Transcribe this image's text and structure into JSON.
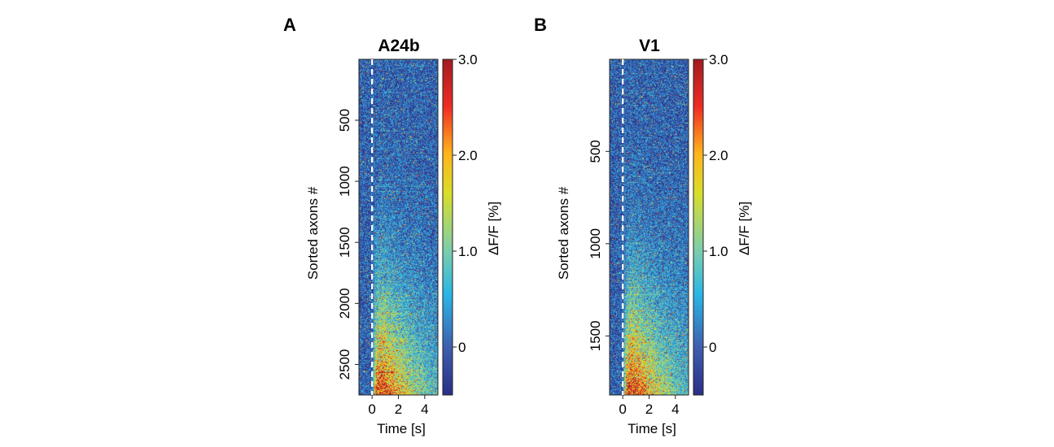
{
  "chart_data": [
    {
      "type": "heatmap",
      "panel_label": "A",
      "title": "A24b",
      "xlabel": "Time [s]",
      "ylabel": "Sorted axons #",
      "x_ticks": [
        0,
        2,
        4
      ],
      "xlim": [
        -1.0,
        5.0
      ],
      "y_ticks": [
        500,
        1000,
        1500,
        2000,
        2500
      ],
      "ylim": [
        2750,
        1
      ],
      "y_inverted": true,
      "n_rows": 2750,
      "stimulus_onset": 0,
      "colorbar": {
        "label": "ΔF/F [%]",
        "colormap": "jet",
        "range": [
          -0.5,
          3.0
        ],
        "ticks": [
          0,
          1.0,
          2.0,
          3.0
        ],
        "tick_labels": [
          "0",
          "1.0",
          "2.0",
          "3.0"
        ]
      }
    },
    {
      "type": "heatmap",
      "panel_label": "B",
      "title": "V1",
      "xlabel": "Time [s]",
      "ylabel": "Sorted axons #",
      "x_ticks": [
        0,
        2,
        4
      ],
      "xlim": [
        -1.0,
        5.0
      ],
      "y_ticks": [
        500,
        1000,
        1500
      ],
      "ylim": [
        1820,
        1
      ],
      "y_inverted": true,
      "n_rows": 1820,
      "stimulus_onset": 0,
      "colorbar": {
        "label": "ΔF/F [%]",
        "colormap": "jet",
        "range": [
          -0.5,
          3.0
        ],
        "ticks": [
          0,
          1.0,
          2.0,
          3.0
        ],
        "tick_labels": [
          "0",
          "1.0",
          "2.0",
          "3.0"
        ]
      }
    }
  ]
}
